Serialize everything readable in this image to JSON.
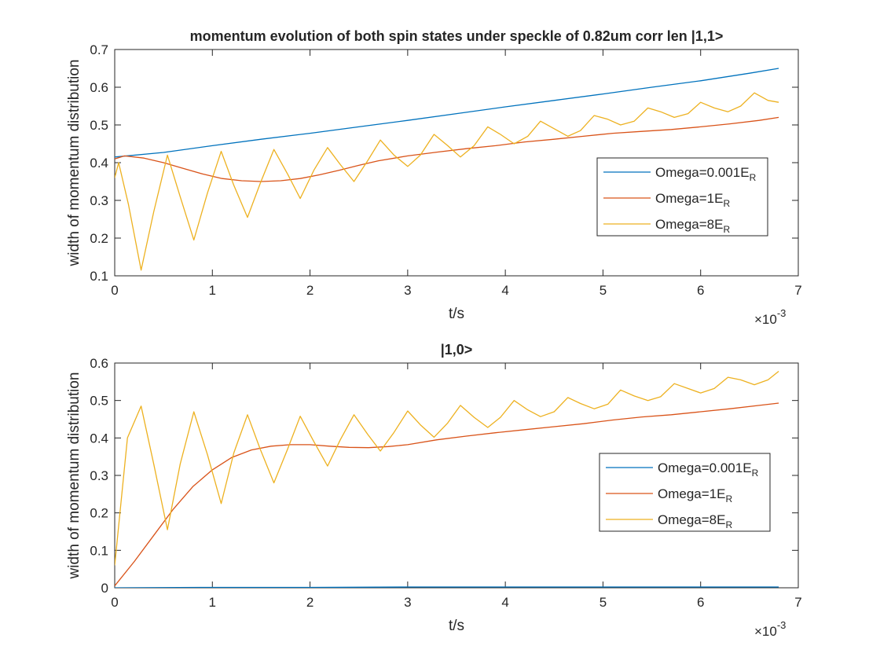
{
  "colors": {
    "series_1": "#0072BD",
    "series_2": "#D95319",
    "series_3": "#EDB120",
    "axis": "#262626",
    "background": "#FFFFFF"
  },
  "chart_data": [
    {
      "type": "line",
      "title": "momentum evolution of both spin states under speckle of 0.82um corr len |1,1>",
      "xlabel": "t/s",
      "ylabel": "width of momentum distribution",
      "x_exponent_label": "×10",
      "x_exponent": "-3",
      "xlim": [
        0,
        7
      ],
      "ylim": [
        0.1,
        0.7
      ],
      "x_ticks": [
        0,
        1,
        2,
        3,
        4,
        5,
        6,
        7
      ],
      "y_ticks": [
        0.1,
        0.2,
        0.3,
        0.4,
        0.5,
        0.6,
        0.7
      ],
      "x_tick_labels": [
        "0",
        "1",
        "2",
        "3",
        "4",
        "5",
        "6",
        "7"
      ],
      "y_tick_labels": [
        "0.1",
        "0.2",
        "0.3",
        "0.4",
        "0.5",
        "0.6",
        "0.7"
      ],
      "grid": false,
      "legend_position": "right",
      "series": [
        {
          "name": "Omega=0.001",
          "subscript": "R",
          "name_suffix": "E",
          "x": [
            0,
            0.5,
            1,
            1.5,
            2,
            2.5,
            3,
            3.5,
            4,
            4.5,
            5,
            5.5,
            6,
            6.5,
            6.8
          ],
          "y": [
            0.415,
            0.427,
            0.445,
            0.462,
            0.478,
            0.495,
            0.512,
            0.53,
            0.548,
            0.565,
            0.582,
            0.6,
            0.617,
            0.637,
            0.65
          ]
        },
        {
          "name": "Omega=1",
          "subscript": "R",
          "name_suffix": "E",
          "x": [
            0,
            0.1,
            0.3,
            0.5,
            0.7,
            0.9,
            1.1,
            1.3,
            1.5,
            1.7,
            1.9,
            2.1,
            2.3,
            2.5,
            2.7,
            3.0,
            3.3,
            3.6,
            3.9,
            4.2,
            4.5,
            4.8,
            5.1,
            5.4,
            5.7,
            6.0,
            6.3,
            6.6,
            6.8
          ],
          "y": [
            0.41,
            0.418,
            0.412,
            0.4,
            0.385,
            0.37,
            0.358,
            0.352,
            0.35,
            0.352,
            0.358,
            0.368,
            0.38,
            0.393,
            0.405,
            0.418,
            0.428,
            0.437,
            0.445,
            0.455,
            0.462,
            0.47,
            0.478,
            0.483,
            0.488,
            0.495,
            0.503,
            0.512,
            0.52
          ]
        },
        {
          "name": "Omega=8",
          "subscript": "R",
          "name_suffix": "E",
          "x": [
            0,
            0.04,
            0.14,
            0.27,
            0.4,
            0.54,
            0.67,
            0.81,
            0.95,
            1.09,
            1.22,
            1.36,
            1.49,
            1.63,
            1.77,
            1.9,
            2.04,
            2.18,
            2.31,
            2.45,
            2.59,
            2.72,
            2.86,
            3.0,
            3.13,
            3.27,
            3.41,
            3.54,
            3.68,
            3.82,
            3.95,
            4.09,
            4.23,
            4.36,
            4.5,
            4.64,
            4.77,
            4.91,
            5.05,
            5.18,
            5.32,
            5.46,
            5.59,
            5.73,
            5.87,
            6.0,
            6.14,
            6.28,
            6.41,
            6.55,
            6.69,
            6.8
          ],
          "y": [
            0.36,
            0.4,
            0.29,
            0.115,
            0.27,
            0.42,
            0.31,
            0.195,
            0.32,
            0.43,
            0.34,
            0.255,
            0.345,
            0.435,
            0.37,
            0.305,
            0.38,
            0.44,
            0.395,
            0.35,
            0.405,
            0.46,
            0.42,
            0.39,
            0.42,
            0.475,
            0.445,
            0.415,
            0.445,
            0.495,
            0.475,
            0.45,
            0.47,
            0.51,
            0.49,
            0.47,
            0.485,
            0.525,
            0.515,
            0.5,
            0.51,
            0.545,
            0.535,
            0.52,
            0.53,
            0.56,
            0.545,
            0.535,
            0.55,
            0.585,
            0.565,
            0.56
          ]
        }
      ]
    },
    {
      "type": "line",
      "title": "|1,0>",
      "xlabel": "t/s",
      "ylabel": "width of momentum distribution",
      "x_exponent_label": "×10",
      "x_exponent": "-3",
      "xlim": [
        0,
        7
      ],
      "ylim": [
        0,
        0.6
      ],
      "x_ticks": [
        0,
        1,
        2,
        3,
        4,
        5,
        6,
        7
      ],
      "y_ticks": [
        0,
        0.1,
        0.2,
        0.3,
        0.4,
        0.5,
        0.6
      ],
      "x_tick_labels": [
        "0",
        "1",
        "2",
        "3",
        "4",
        "5",
        "6",
        "7"
      ],
      "y_tick_labels": [
        "0",
        "0.1",
        "0.2",
        "0.3",
        "0.4",
        "0.5",
        "0.6"
      ],
      "grid": false,
      "legend_position": "right",
      "series": [
        {
          "name": "Omega=0.001",
          "subscript": "R",
          "name_suffix": "E",
          "x": [
            0,
            1,
            2,
            3,
            4,
            5,
            6,
            6.8
          ],
          "y": [
            0.0,
            0.001,
            0.001,
            0.002,
            0.002,
            0.002,
            0.002,
            0.002
          ]
        },
        {
          "name": "Omega=1",
          "subscript": "R",
          "name_suffix": "E",
          "x": [
            0,
            0.2,
            0.4,
            0.6,
            0.8,
            1.0,
            1.2,
            1.4,
            1.6,
            1.8,
            2.0,
            2.2,
            2.4,
            2.6,
            2.8,
            3.0,
            3.3,
            3.6,
            3.9,
            4.2,
            4.5,
            4.8,
            5.1,
            5.4,
            5.7,
            6.0,
            6.3,
            6.6,
            6.8
          ],
          "y": [
            0.005,
            0.07,
            0.14,
            0.21,
            0.27,
            0.315,
            0.348,
            0.368,
            0.378,
            0.382,
            0.382,
            0.378,
            0.375,
            0.374,
            0.377,
            0.382,
            0.395,
            0.405,
            0.414,
            0.422,
            0.43,
            0.438,
            0.448,
            0.456,
            0.462,
            0.47,
            0.478,
            0.487,
            0.493
          ]
        },
        {
          "name": "Omega=8",
          "subscript": "R",
          "name_suffix": "E",
          "x": [
            0,
            0.13,
            0.27,
            0.4,
            0.54,
            0.67,
            0.81,
            0.95,
            1.09,
            1.22,
            1.36,
            1.49,
            1.63,
            1.77,
            1.9,
            2.04,
            2.18,
            2.31,
            2.45,
            2.59,
            2.72,
            2.86,
            3.0,
            3.13,
            3.27,
            3.41,
            3.54,
            3.68,
            3.82,
            3.95,
            4.09,
            4.23,
            4.36,
            4.5,
            4.64,
            4.77,
            4.91,
            5.05,
            5.18,
            5.32,
            5.46,
            5.59,
            5.73,
            5.87,
            6.0,
            6.14,
            6.28,
            6.41,
            6.55,
            6.69,
            6.8
          ],
          "y": [
            0.06,
            0.4,
            0.485,
            0.33,
            0.155,
            0.33,
            0.47,
            0.355,
            0.225,
            0.36,
            0.462,
            0.37,
            0.28,
            0.37,
            0.458,
            0.39,
            0.325,
            0.395,
            0.462,
            0.41,
            0.365,
            0.415,
            0.472,
            0.435,
            0.402,
            0.44,
            0.487,
            0.455,
            0.428,
            0.455,
            0.5,
            0.475,
            0.457,
            0.47,
            0.508,
            0.492,
            0.478,
            0.49,
            0.528,
            0.512,
            0.5,
            0.51,
            0.545,
            0.532,
            0.52,
            0.532,
            0.562,
            0.555,
            0.542,
            0.555,
            0.578
          ]
        }
      ]
    }
  ]
}
